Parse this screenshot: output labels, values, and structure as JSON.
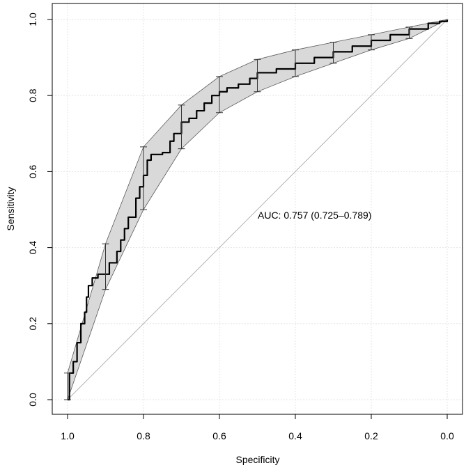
{
  "chart_data": {
    "type": "line",
    "title": "",
    "xlabel": "Specificity",
    "ylabel": "Sensitivity",
    "xlim": [
      1.0,
      0.0
    ],
    "ylim": [
      0.0,
      1.0
    ],
    "x_reversed": true,
    "grid": true,
    "xticks": [
      1.0,
      0.8,
      0.6,
      0.4,
      0.2,
      0.0
    ],
    "yticks": [
      0.0,
      0.2,
      0.4,
      0.6,
      0.8,
      1.0
    ],
    "xtick_labels": [
      "1.0",
      "0.8",
      "0.6",
      "0.4",
      "0.2",
      "0.0"
    ],
    "ytick_labels": [
      "0.0",
      "0.2",
      "0.4",
      "0.6",
      "0.8",
      "1.0"
    ],
    "annotation": "AUC: 0.757 (0.725–0.789)",
    "auc": 0.757,
    "auc_ci": [
      0.725,
      0.789
    ],
    "series": [
      {
        "name": "ROC curve",
        "points": [
          [
            1.0,
            0.0
          ],
          [
            0.995,
            0.07
          ],
          [
            0.985,
            0.1
          ],
          [
            0.975,
            0.15
          ],
          [
            0.965,
            0.2
          ],
          [
            0.955,
            0.23
          ],
          [
            0.95,
            0.27
          ],
          [
            0.945,
            0.3
          ],
          [
            0.935,
            0.32
          ],
          [
            0.92,
            0.33
          ],
          [
            0.9,
            0.33
          ],
          [
            0.89,
            0.36
          ],
          [
            0.87,
            0.39
          ],
          [
            0.86,
            0.42
          ],
          [
            0.85,
            0.45
          ],
          [
            0.84,
            0.48
          ],
          [
            0.82,
            0.53
          ],
          [
            0.81,
            0.56
          ],
          [
            0.8,
            0.59
          ],
          [
            0.79,
            0.63
          ],
          [
            0.78,
            0.645
          ],
          [
            0.75,
            0.65
          ],
          [
            0.73,
            0.68
          ],
          [
            0.72,
            0.7
          ],
          [
            0.7,
            0.73
          ],
          [
            0.68,
            0.74
          ],
          [
            0.66,
            0.76
          ],
          [
            0.64,
            0.78
          ],
          [
            0.62,
            0.8
          ],
          [
            0.6,
            0.81
          ],
          [
            0.58,
            0.82
          ],
          [
            0.55,
            0.83
          ],
          [
            0.52,
            0.845
          ],
          [
            0.5,
            0.86
          ],
          [
            0.45,
            0.87
          ],
          [
            0.4,
            0.885
          ],
          [
            0.35,
            0.9
          ],
          [
            0.3,
            0.915
          ],
          [
            0.25,
            0.93
          ],
          [
            0.2,
            0.945
          ],
          [
            0.15,
            0.96
          ],
          [
            0.1,
            0.975
          ],
          [
            0.05,
            0.99
          ],
          [
            0.02,
            0.995
          ],
          [
            0.0,
            1.0
          ]
        ]
      },
      {
        "name": "Reference (chance)",
        "points": [
          [
            1.0,
            0.0
          ],
          [
            0.0,
            1.0
          ]
        ]
      }
    ],
    "confidence_band": [
      {
        "specificity": 1.0,
        "lower": 0.0,
        "upper": 0.07
      },
      {
        "specificity": 0.9,
        "lower": 0.29,
        "upper": 0.41
      },
      {
        "specificity": 0.8,
        "lower": 0.5,
        "upper": 0.665
      },
      {
        "specificity": 0.7,
        "lower": 0.66,
        "upper": 0.775
      },
      {
        "specificity": 0.6,
        "lower": 0.755,
        "upper": 0.85
      },
      {
        "specificity": 0.5,
        "lower": 0.81,
        "upper": 0.895
      },
      {
        "specificity": 0.4,
        "lower": 0.85,
        "upper": 0.92
      },
      {
        "specificity": 0.3,
        "lower": 0.885,
        "upper": 0.94
      },
      {
        "specificity": 0.2,
        "lower": 0.92,
        "upper": 0.96
      },
      {
        "specificity": 0.1,
        "lower": 0.95,
        "upper": 0.98
      },
      {
        "specificity": 0.0,
        "lower": 1.0,
        "upper": 1.0
      }
    ],
    "colors": {
      "band_fill": "#d9d9d9",
      "band_edge": "#595959",
      "curve": "#000000",
      "diagonal": "#b3b3b3",
      "grid": "#e5e5e5"
    }
  }
}
